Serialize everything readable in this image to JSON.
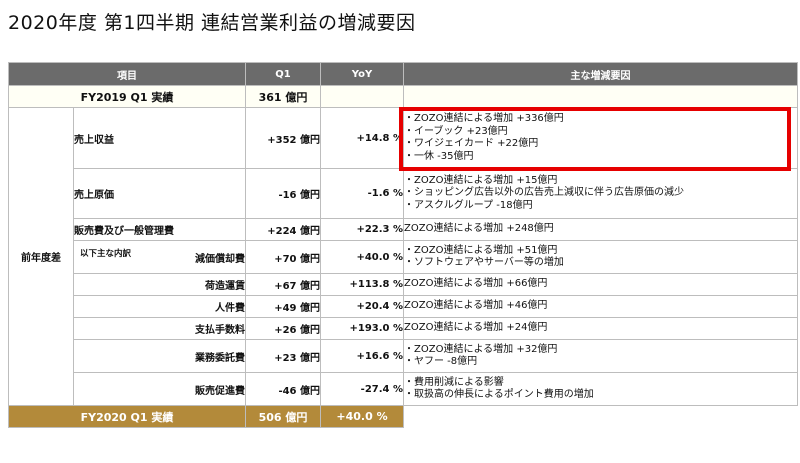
{
  "title": "2020年度 第1四半期 連結営業利益の増減要因",
  "header": {
    "item": "項目",
    "q1": "Q1",
    "yoy": "YoY",
    "factors": "主な増減要因"
  },
  "fy2019": {
    "label": "FY2019 Q1 実績",
    "q1": "361 億円"
  },
  "group_label": "前年度差",
  "breakdown_label": "以下主な内訳",
  "rows": [
    {
      "label": "売上収益",
      "q1": "+352 億円",
      "yoy": "+14.8 %",
      "factors": [
        "・ZOZO連結による増加 +336億円",
        "・イーブック +23億円",
        "・ワイジェイカード +22億円",
        "・一休 -35億円"
      ]
    },
    {
      "label": "売上原価",
      "q1": "-16 億円",
      "yoy": "-1.6 %",
      "factors": [
        "・ZOZO連結による増加 +15億円",
        "・ショッピング広告以外の広告売上減収に伴う広告原価の減少",
        "・アスクルグループ -18億円"
      ]
    },
    {
      "label": "販売費及び一般管理費",
      "q1": "+224 億円",
      "yoy": "+22.3 %",
      "factors": [
        "ZOZO連結による増加 +248億円"
      ]
    },
    {
      "label": "減価償却費",
      "q1": "+70 億円",
      "yoy": "+40.0 %",
      "factors": [
        "・ZOZO連結による増加 +51億円",
        "・ソフトウェアやサーバー等の増加"
      ]
    },
    {
      "label": "荷造運賃",
      "q1": "+67 億円",
      "yoy": "+113.8 %",
      "factors": [
        "ZOZO連結による増加 +66億円"
      ]
    },
    {
      "label": "人件費",
      "q1": "+49 億円",
      "yoy": "+20.4 %",
      "factors": [
        "ZOZO連結による増加 +46億円"
      ]
    },
    {
      "label": "支払手数料",
      "q1": "+26 億円",
      "yoy": "+193.0 %",
      "factors": [
        "ZOZO連結による増加 +24億円"
      ]
    },
    {
      "label": "業務委託費",
      "q1": "+23 億円",
      "yoy": "+16.6 %",
      "factors": [
        "・ZOZO連結による増加 +32億円",
        "・ヤフー -8億円"
      ]
    },
    {
      "label": "販売促進費",
      "q1": "-46 億円",
      "yoy": "-27.4 %",
      "factors": [
        "・費用削減による影響",
        "・取扱高の伸長によるポイント費用の増加"
      ]
    }
  ],
  "fy2020": {
    "label": "FY2020 Q1 実績",
    "q1": "506 億円",
    "yoy": "+40.0 %"
  },
  "highlight_color": "#e60000",
  "total_row_color": "#b38a3a"
}
